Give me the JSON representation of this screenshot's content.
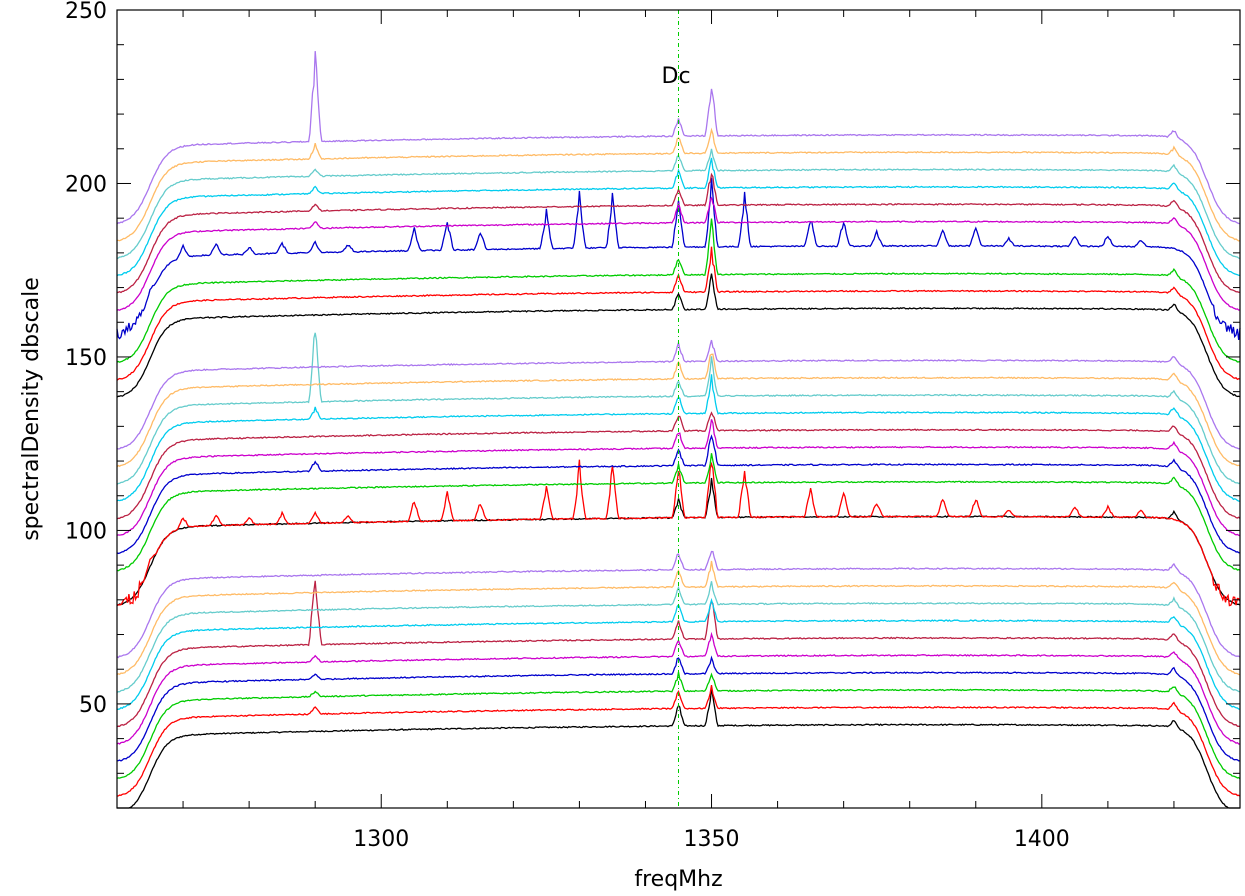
{
  "chart_data": {
    "type": "line",
    "title": "",
    "xlabel": "freqMhz",
    "ylabel": "spectralDensity  dbscale",
    "xlim": [
      1260,
      1430
    ],
    "ylim": [
      20,
      250
    ],
    "x_ticks": [
      1300,
      1350,
      1400
    ],
    "y_ticks": [
      50,
      100,
      150,
      200,
      250
    ],
    "grid": false,
    "legend": "none",
    "annotations": [
      {
        "text": "Dc",
        "x": 1345,
        "color": "#00cc00"
      }
    ],
    "series_colors": [
      "#000000",
      "#ff0000",
      "#00cc00",
      "#0000cc",
      "#cc00cc",
      "#bb2244",
      "#00ccee",
      "#66cccc",
      "#ffbb66",
      "#aa77ee"
    ],
    "series": [
      {
        "offset": 40,
        "spikes": [
          [
            1345,
            6
          ],
          [
            1350,
            10
          ],
          [
            1420,
            2
          ]
        ]
      },
      {
        "offset": 45,
        "spikes": [
          [
            1290,
            2
          ],
          [
            1345,
            5
          ],
          [
            1350,
            6
          ],
          [
            1420,
            2
          ]
        ]
      },
      {
        "offset": 50,
        "spikes": [
          [
            1290,
            1.5
          ],
          [
            1345,
            5
          ],
          [
            1350,
            5
          ],
          [
            1420,
            2
          ]
        ]
      },
      {
        "offset": 55,
        "spikes": [
          [
            1290,
            1.5
          ],
          [
            1345,
            5
          ],
          [
            1350,
            4
          ],
          [
            1420,
            2
          ]
        ]
      },
      {
        "offset": 60,
        "spikes": [
          [
            1290,
            2
          ],
          [
            1345,
            5
          ],
          [
            1350,
            7
          ],
          [
            1420,
            2
          ]
        ]
      },
      {
        "offset": 65,
        "spikes": [
          [
            1290,
            20
          ],
          [
            1345,
            5
          ],
          [
            1350,
            12
          ],
          [
            1420,
            2
          ]
        ]
      },
      {
        "offset": 70,
        "spikes": [
          [
            1345,
            5
          ],
          [
            1350,
            6
          ],
          [
            1420,
            2
          ]
        ]
      },
      {
        "offset": 75,
        "spikes": [
          [
            1345,
            5
          ],
          [
            1350,
            6
          ],
          [
            1420,
            2
          ]
        ]
      },
      {
        "offset": 80,
        "spikes": [
          [
            1345,
            5
          ],
          [
            1350,
            7
          ],
          [
            1420,
            2
          ]
        ]
      },
      {
        "offset": 85,
        "spikes": [
          [
            1345,
            5
          ],
          [
            1350,
            6
          ],
          [
            1420,
            2
          ]
        ]
      },
      {
        "offset": 100,
        "spikes": [
          [
            1345,
            5
          ],
          [
            1350,
            10
          ],
          [
            1420,
            2
          ]
        ]
      },
      {
        "offset": 100,
        "spikes": [
          [
            1265,
            2
          ],
          [
            1270,
            3
          ],
          [
            1275,
            3
          ],
          [
            1280,
            2
          ],
          [
            1285,
            3
          ],
          [
            1290,
            3
          ],
          [
            1295,
            2
          ],
          [
            1305,
            6
          ],
          [
            1310,
            8
          ],
          [
            1315,
            5
          ],
          [
            1325,
            10
          ],
          [
            1330,
            15
          ],
          [
            1335,
            14
          ],
          [
            1345,
            14
          ],
          [
            1350,
            18
          ],
          [
            1355,
            14
          ],
          [
            1365,
            8
          ],
          [
            1370,
            7
          ],
          [
            1375,
            4
          ],
          [
            1385,
            5
          ],
          [
            1390,
            5
          ],
          [
            1395,
            2
          ],
          [
            1405,
            3
          ],
          [
            1410,
            3
          ],
          [
            1415,
            2
          ]
        ],
        "noisy_edges": true
      },
      {
        "offset": 110,
        "spikes": [
          [
            1345,
            5
          ],
          [
            1350,
            8
          ],
          [
            1420,
            2
          ]
        ]
      },
      {
        "offset": 115,
        "spikes": [
          [
            1290,
            3
          ],
          [
            1345,
            5
          ],
          [
            1350,
            10
          ],
          [
            1420,
            2
          ]
        ]
      },
      {
        "offset": 120,
        "spikes": [
          [
            1345,
            5
          ],
          [
            1350,
            8
          ],
          [
            1420,
            2
          ]
        ]
      },
      {
        "offset": 125,
        "spikes": [
          [
            1345,
            5
          ],
          [
            1350,
            6
          ],
          [
            1420,
            2
          ]
        ]
      },
      {
        "offset": 130,
        "spikes": [
          [
            1290,
            3
          ],
          [
            1345,
            5
          ],
          [
            1350,
            10
          ],
          [
            1420,
            2
          ]
        ]
      },
      {
        "offset": 135,
        "spikes": [
          [
            1290,
            22
          ],
          [
            1345,
            5
          ],
          [
            1350,
            10
          ],
          [
            1420,
            2
          ]
        ]
      },
      {
        "offset": 140,
        "spikes": [
          [
            1345,
            5
          ],
          [
            1350,
            8
          ],
          [
            1420,
            2
          ]
        ]
      },
      {
        "offset": 145,
        "spikes": [
          [
            1345,
            5
          ],
          [
            1350,
            6
          ],
          [
            1420,
            2
          ]
        ]
      },
      {
        "offset": 160,
        "spikes": [
          [
            1345,
            5
          ],
          [
            1350,
            10
          ],
          [
            1420,
            2
          ]
        ]
      },
      {
        "offset": 165,
        "spikes": [
          [
            1345,
            5
          ],
          [
            1350,
            12
          ],
          [
            1420,
            2
          ]
        ]
      },
      {
        "offset": 170,
        "spikes": [
          [
            1345,
            5
          ],
          [
            1350,
            15
          ],
          [
            1420,
            2
          ]
        ]
      },
      {
        "offset": 178,
        "spikes": [
          [
            1265,
            2
          ],
          [
            1270,
            3
          ],
          [
            1275,
            3
          ],
          [
            1280,
            2
          ],
          [
            1285,
            3
          ],
          [
            1290,
            3
          ],
          [
            1295,
            2
          ],
          [
            1305,
            6
          ],
          [
            1310,
            8
          ],
          [
            1315,
            5
          ],
          [
            1325,
            10
          ],
          [
            1330,
            15
          ],
          [
            1335,
            14
          ],
          [
            1345,
            14
          ],
          [
            1350,
            18
          ],
          [
            1355,
            14
          ],
          [
            1365,
            8
          ],
          [
            1370,
            7
          ],
          [
            1375,
            4
          ],
          [
            1385,
            5
          ],
          [
            1390,
            5
          ],
          [
            1395,
            2
          ],
          [
            1405,
            3
          ],
          [
            1410,
            3
          ],
          [
            1415,
            2
          ]
        ],
        "noisy_edges": true
      },
      {
        "offset": 185,
        "spikes": [
          [
            1290,
            2
          ],
          [
            1345,
            5
          ],
          [
            1350,
            8
          ],
          [
            1420,
            2
          ]
        ]
      },
      {
        "offset": 190,
        "spikes": [
          [
            1290,
            2
          ],
          [
            1345,
            5
          ],
          [
            1350,
            10
          ],
          [
            1420,
            2
          ]
        ]
      },
      {
        "offset": 195,
        "spikes": [
          [
            1290,
            2
          ],
          [
            1345,
            5
          ],
          [
            1350,
            8
          ],
          [
            1420,
            2
          ]
        ]
      },
      {
        "offset": 200,
        "spikes": [
          [
            1290,
            2
          ],
          [
            1345,
            5
          ],
          [
            1350,
            6
          ],
          [
            1420,
            2
          ]
        ]
      },
      {
        "offset": 205,
        "spikes": [
          [
            1290,
            4
          ],
          [
            1345,
            5
          ],
          [
            1350,
            6
          ],
          [
            1420,
            2
          ]
        ]
      },
      {
        "offset": 210,
        "spikes": [
          [
            1290,
            24
          ],
          [
            1345,
            5
          ],
          [
            1350,
            15
          ],
          [
            1420,
            2
          ]
        ]
      }
    ]
  }
}
